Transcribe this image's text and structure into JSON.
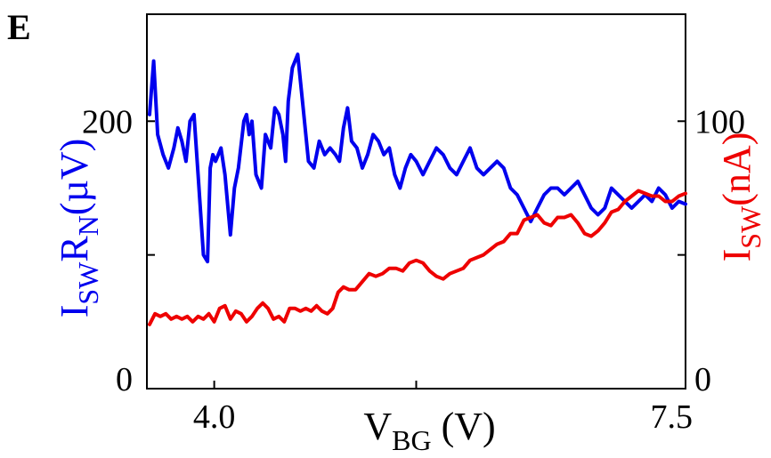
{
  "panel_label": "E",
  "colors": {
    "left_series": "#0000ee",
    "right_series": "#ee0000",
    "axis": "#000000"
  },
  "chart_data": {
    "type": "line",
    "panel": "E",
    "xlabel": {
      "main": "V",
      "sub": "BG",
      "unit": "(V)"
    },
    "ylabel_left": {
      "I": "I",
      "I_sub": "SW",
      "R": "R",
      "R_sub": "N",
      "unit": "(µV)"
    },
    "ylabel_right": {
      "I": "I",
      "I_sub": "SW",
      "unit": "(nA)"
    },
    "xlim": [
      3.5,
      7.5
    ],
    "ylim_left": [
      0,
      280
    ],
    "ylim_right": [
      0,
      140
    ],
    "xticks": [
      {
        "value": 4.0,
        "label": "4.0"
      },
      {
        "value": 7.5,
        "label": "7.5"
      }
    ],
    "xticks_unlabeled": [
      5.5
    ],
    "yticks_left": [
      {
        "value": 0,
        "label": "0"
      },
      {
        "value": 200,
        "label": "200"
      }
    ],
    "yticks_left_unlabeled": [
      100
    ],
    "yticks_right": [
      {
        "value": 0,
        "label": "0"
      },
      {
        "value": 100,
        "label": "100"
      }
    ],
    "yticks_right_unlabeled": [
      50
    ],
    "grid": false,
    "legend": "none",
    "series": [
      {
        "axis": "left",
        "color": "#0000ee",
        "x": [
          3.52,
          3.55,
          3.58,
          3.62,
          3.66,
          3.7,
          3.73,
          3.76,
          3.79,
          3.82,
          3.85,
          3.88,
          3.92,
          3.95,
          3.97,
          3.99,
          4.01,
          4.03,
          4.05,
          4.08,
          4.12,
          4.15,
          4.18,
          4.22,
          4.24,
          4.26,
          4.28,
          4.31,
          4.35,
          4.38,
          4.42,
          4.45,
          4.48,
          4.51,
          4.53,
          4.55,
          4.58,
          4.62,
          4.66,
          4.7,
          4.74,
          4.78,
          4.82,
          4.86,
          4.9,
          4.93,
          4.96,
          4.99,
          5.02,
          5.06,
          5.1,
          5.14,
          5.18,
          5.22,
          5.26,
          5.3,
          5.34,
          5.38,
          5.42,
          5.46,
          5.5,
          5.55,
          5.6,
          5.65,
          5.7,
          5.75,
          5.8,
          5.85,
          5.9,
          5.95,
          6.0,
          6.05,
          6.1,
          6.15,
          6.2,
          6.25,
          6.3,
          6.35,
          6.4,
          6.45,
          6.5,
          6.55,
          6.6,
          6.65,
          6.7,
          6.75,
          6.8,
          6.85,
          6.9,
          6.95,
          7.0,
          7.05,
          7.1,
          7.15,
          7.2,
          7.25,
          7.3,
          7.35,
          7.4,
          7.45,
          7.5
        ],
        "y": [
          205,
          245,
          190,
          175,
          165,
          180,
          195,
          185,
          170,
          200,
          205,
          160,
          100,
          95,
          165,
          175,
          170,
          175,
          180,
          160,
          115,
          150,
          165,
          200,
          205,
          190,
          200,
          160,
          150,
          190,
          180,
          210,
          205,
          190,
          170,
          215,
          240,
          250,
          210,
          170,
          165,
          185,
          175,
          180,
          175,
          170,
          195,
          210,
          185,
          180,
          165,
          175,
          190,
          185,
          175,
          180,
          160,
          150,
          165,
          175,
          170,
          160,
          170,
          180,
          175,
          165,
          160,
          170,
          180,
          165,
          160,
          165,
          170,
          165,
          150,
          145,
          135,
          125,
          135,
          145,
          150,
          150,
          145,
          150,
          155,
          145,
          135,
          130,
          135,
          150,
          145,
          140,
          135,
          140,
          145,
          140,
          150,
          145,
          135,
          140,
          138
        ]
      },
      {
        "axis": "right",
        "color": "#ee0000",
        "x": [
          3.52,
          3.56,
          3.6,
          3.64,
          3.68,
          3.72,
          3.76,
          3.8,
          3.84,
          3.88,
          3.92,
          3.96,
          4.0,
          4.04,
          4.08,
          4.12,
          4.16,
          4.2,
          4.24,
          4.28,
          4.32,
          4.36,
          4.4,
          4.44,
          4.48,
          4.52,
          4.56,
          4.6,
          4.64,
          4.68,
          4.72,
          4.76,
          4.8,
          4.84,
          4.88,
          4.92,
          4.96,
          5.0,
          5.05,
          5.1,
          5.15,
          5.2,
          5.25,
          5.3,
          5.35,
          5.4,
          5.45,
          5.5,
          5.55,
          5.6,
          5.65,
          5.7,
          5.75,
          5.8,
          5.85,
          5.9,
          5.95,
          6.0,
          6.05,
          6.1,
          6.15,
          6.2,
          6.25,
          6.3,
          6.35,
          6.4,
          6.45,
          6.5,
          6.55,
          6.6,
          6.65,
          6.7,
          6.75,
          6.8,
          6.85,
          6.9,
          6.95,
          7.0,
          7.05,
          7.1,
          7.15,
          7.2,
          7.25,
          7.3,
          7.35,
          7.4,
          7.45,
          7.5
        ],
        "y": [
          24,
          28,
          27,
          28,
          26,
          27,
          26,
          27,
          25,
          27,
          26,
          28,
          25,
          30,
          31,
          26,
          29,
          28,
          25,
          27,
          30,
          32,
          30,
          26,
          27,
          25,
          30,
          30,
          29,
          30,
          29,
          31,
          29,
          28,
          30,
          36,
          38,
          37,
          37,
          40,
          43,
          42,
          43,
          45,
          45,
          44,
          47,
          48,
          47,
          44,
          42,
          41,
          43,
          44,
          45,
          48,
          49,
          50,
          52,
          54,
          55,
          58,
          58,
          63,
          64,
          65,
          62,
          61,
          64,
          64,
          65,
          62,
          58,
          57,
          59,
          62,
          66,
          67,
          70,
          72,
          74,
          73,
          72,
          72,
          70,
          70,
          72,
          73
        ]
      }
    ]
  }
}
